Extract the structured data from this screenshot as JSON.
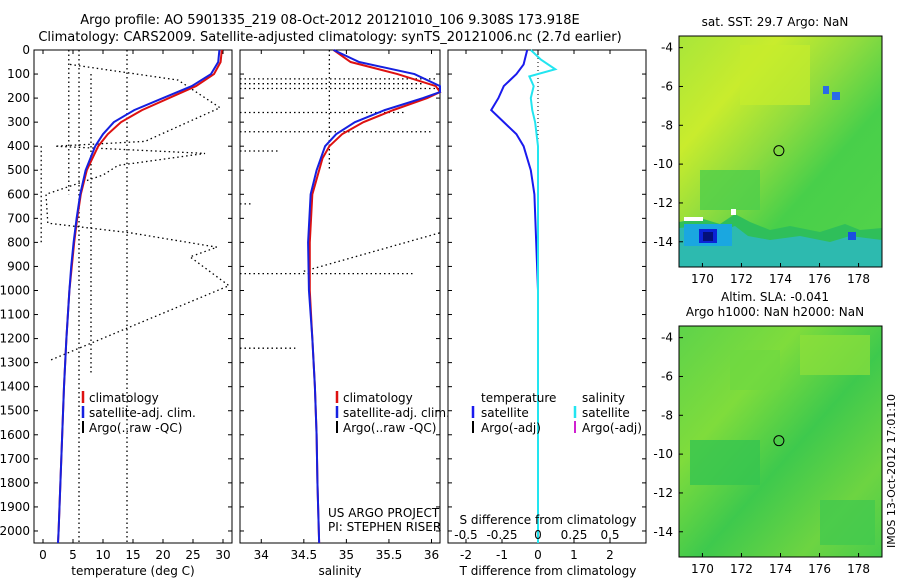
{
  "header": {
    "line1": "Argo profile: AO 5901335_219 08-Oct-2012 20121010_106 9.308S 173.918E",
    "line2": "Climatology: CARS2009. Satellite-adjusted climatology: synTS_20121006.nc (2.7d earlier)"
  },
  "colors": {
    "climatology": "#dd1111",
    "satellite_adj": "#1520e0",
    "argo": "#000000",
    "satellite_t": "#1a1aee",
    "satellite_s": "#22e5f0",
    "argo_s": "#d020d0"
  },
  "chart_data": [
    {
      "type": "line",
      "name": "temperature-profile",
      "xlabel": "temperature (deg C)",
      "xlim": [
        -1.5,
        31.5
      ],
      "xticks": [
        0,
        5,
        10,
        15,
        20,
        25,
        30
      ],
      "ylim": [
        0,
        2050
      ],
      "yticks": [
        0,
        100,
        200,
        300,
        400,
        500,
        600,
        700,
        800,
        900,
        1000,
        1100,
        1200,
        1300,
        1400,
        1500,
        1600,
        1700,
        1800,
        1900,
        2000
      ],
      "legend": [
        "climatology",
        "satellite-adj. clim.",
        "Argo(..raw -QC)"
      ],
      "legend_position": "lower-center",
      "series": [
        {
          "name": "climatology",
          "depth": [
            0,
            50,
            100,
            150,
            200,
            250,
            300,
            350,
            400,
            500,
            600,
            700,
            800,
            900,
            1000,
            1200,
            1400,
            1600,
            1800,
            2000,
            2050
          ],
          "values": [
            29.8,
            29.6,
            28.5,
            25.5,
            21.0,
            16.5,
            13.0,
            10.8,
            9.2,
            7.3,
            6.3,
            5.7,
            5.2,
            4.8,
            4.4,
            3.9,
            3.5,
            3.2,
            2.9,
            2.6,
            2.5
          ]
        },
        {
          "name": "satellite-adj. clim.",
          "depth": [
            0,
            50,
            100,
            150,
            200,
            250,
            300,
            350,
            400,
            500,
            600,
            700,
            800,
            900,
            1000,
            1200,
            1400,
            1600,
            1800,
            2000,
            2050
          ],
          "values": [
            29.4,
            29.2,
            28.0,
            24.8,
            20.0,
            15.2,
            11.8,
            10.0,
            8.7,
            7.1,
            6.2,
            5.6,
            5.1,
            4.7,
            4.4,
            3.9,
            3.5,
            3.2,
            2.9,
            2.6,
            2.5
          ]
        },
        {
          "name": "Argo(..raw -QC)",
          "depth": [
            60,
            125,
            240,
            380,
            400,
            430,
            480,
            520,
            600,
            720,
            760,
            820,
            860,
            980,
            1290
          ],
          "values": [
            4.5,
            22.5,
            29.5,
            17.0,
            2.0,
            27.0,
            12.5,
            10.0,
            0.5,
            0.8,
            14.5,
            29.0,
            24.5,
            31.0,
            1.2
          ]
        }
      ]
    },
    {
      "type": "line",
      "name": "salinity-profile",
      "xlabel": "salinity",
      "xlim": [
        33.75,
        36.1
      ],
      "xticks": [
        34,
        34.5,
        35,
        35.5,
        36
      ],
      "ylim": [
        0,
        2050
      ],
      "legend": [
        "climatology",
        "satellite-adj. clim.",
        "Argo(..raw -QC)"
      ],
      "legend_position": "lower-right",
      "annotation": [
        "US ARGO PROJECT",
        "PI: STEPHEN RISER"
      ],
      "series": [
        {
          "name": "climatology",
          "depth": [
            0,
            50,
            100,
            150,
            175,
            200,
            250,
            300,
            350,
            400,
            450,
            500,
            600,
            800,
            1000,
            1200,
            1400,
            1600,
            1800,
            2050
          ],
          "values": [
            34.85,
            35.05,
            35.6,
            36.05,
            36.1,
            35.95,
            35.55,
            35.2,
            34.95,
            34.8,
            34.72,
            34.68,
            34.6,
            34.57,
            34.57,
            34.6,
            34.63,
            34.65,
            34.66,
            34.68
          ]
        },
        {
          "name": "satellite-adj. clim.",
          "depth": [
            0,
            50,
            100,
            150,
            175,
            200,
            250,
            300,
            350,
            400,
            450,
            500,
            600,
            800,
            1000,
            1200,
            1400,
            1600,
            1800,
            2050
          ],
          "values": [
            34.85,
            35.15,
            35.8,
            36.1,
            36.1,
            35.9,
            35.45,
            35.1,
            34.88,
            34.75,
            34.7,
            34.65,
            34.58,
            34.55,
            34.56,
            34.6,
            34.63,
            34.65,
            34.66,
            34.68
          ]
        },
        {
          "name": "Argo(..raw -QC)",
          "depth": [
            120,
            140,
            160,
            260,
            340,
            420,
            640,
            930,
            1240
          ],
          "values": [
            36.05,
            35.9,
            36.1,
            35.7,
            36.0,
            34.2,
            33.9,
            35.8,
            34.4
          ]
        }
      ]
    },
    {
      "type": "line",
      "name": "difference-profile",
      "xlabel": "T difference from climatology",
      "xlabel_secondary": "S difference from climatology",
      "xlim": [
        -2.5,
        3.0
      ],
      "xticks": [
        -2,
        -1,
        0,
        1,
        2
      ],
      "xticks_secondary": [
        -0.5,
        -0.25,
        0,
        0.25,
        0.5
      ],
      "xticklabels_secondary": [
        "-0.5",
        "-0.25",
        "0",
        "0.25",
        "0.5"
      ],
      "ylim": [
        0,
        2050
      ],
      "legend_groups": [
        {
          "title": "temperature",
          "items": [
            "satellite",
            "Argo(-adj)"
          ]
        },
        {
          "title": "salinity",
          "items": [
            "satellite",
            "Argo(-adj)"
          ]
        }
      ],
      "series": [
        {
          "name": "T satellite",
          "depth": [
            0,
            60,
            100,
            150,
            200,
            250,
            300,
            350,
            400,
            500,
            600,
            800,
            1000,
            1200,
            1400,
            1600,
            1800,
            2050
          ],
          "values": [
            -0.3,
            -0.4,
            -0.6,
            -0.95,
            -1.1,
            -1.3,
            -0.95,
            -0.6,
            -0.4,
            -0.2,
            -0.1,
            -0.05,
            0.0,
            0.0,
            0.0,
            0.0,
            0.0,
            0.0
          ]
        },
        {
          "name": "S satellite",
          "depth": [
            0,
            40,
            80,
            110,
            150,
            200,
            250,
            300,
            400,
            600,
            800,
            1000,
            1300,
            1600,
            2050
          ],
          "values": [
            -0.05,
            0.02,
            0.12,
            -0.06,
            -0.03,
            -0.05,
            -0.04,
            -0.02,
            0.0,
            0.0,
            0.0,
            0.0,
            0.0,
            0.0,
            0.0
          ]
        }
      ]
    },
    {
      "type": "heatmap",
      "name": "sst-map",
      "title": "sat. SST: 29.7 Argo: NaN",
      "xticks": [
        170,
        172,
        174,
        176,
        178
      ],
      "yticks": [
        -4,
        -6,
        -8,
        -10,
        -12,
        -14
      ],
      "xlim": [
        168.8,
        179.2
      ],
      "ylim": [
        -15.3,
        -3.4
      ],
      "marker": {
        "lon": 173.918,
        "lat": -9.308
      }
    },
    {
      "type": "heatmap",
      "name": "sla-map",
      "title": "Altim. SLA: -0.041",
      "subtitle": "Argo h1000: NaN h2000: NaN",
      "xticks": [
        170,
        172,
        174,
        176,
        178
      ],
      "yticks": [
        -4,
        -6,
        -8,
        -10,
        -12,
        -14
      ],
      "xlim": [
        168.8,
        179.2
      ],
      "ylim": [
        -15.3,
        -3.4
      ],
      "marker": {
        "lon": 173.918,
        "lat": -9.308
      }
    }
  ],
  "watermark": "IMOS 13-Oct-2012 17:01:10"
}
